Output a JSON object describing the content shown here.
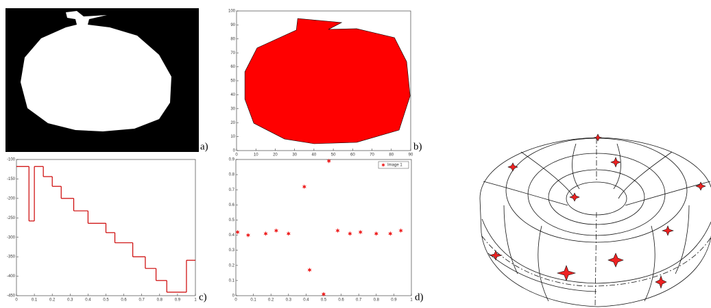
{
  "chart_data": [
    {
      "type": "image",
      "panel_label": "a)"
    },
    {
      "type": "polygon",
      "panel_label": "b)",
      "color": "#ff0000",
      "x": [
        4.3,
        10.6,
        30.9,
        31.6,
        54.3,
        47.5,
        62.1,
        81.6,
        87.9,
        89.7,
        84.0,
        62.1,
        40.1,
        24.8,
        8.9,
        4.3
      ],
      "values": [
        56.4,
        73.5,
        86.3,
        94.6,
        91.7,
        86.8,
        87.3,
        80.9,
        63.7,
        39.2,
        14.7,
        5.9,
        4.9,
        8.3,
        19.6,
        36.8
      ],
      "xlim": [
        0,
        90
      ],
      "xticks": [
        0,
        10,
        20,
        30,
        40,
        50,
        60,
        70,
        80,
        90
      ],
      "ylim": [
        0,
        100
      ],
      "yticks": [
        0,
        10,
        20,
        30,
        40,
        50,
        60,
        70,
        80,
        90,
        100
      ]
    },
    {
      "type": "step",
      "panel_label": "c)",
      "color": "#cc0000",
      "x": [
        0,
        0.07,
        0.1,
        0.15,
        0.2,
        0.25,
        0.32,
        0.4,
        0.5,
        0.55,
        0.65,
        0.72,
        0.78,
        0.84,
        0.95
      ],
      "values": [
        -118,
        -258,
        -118,
        -144,
        -169,
        -200,
        -232,
        -264,
        -288,
        -314,
        -350,
        -380,
        -411,
        -441,
        -359
      ],
      "xlim": [
        0,
        1
      ],
      "xticks": [
        0,
        0.1,
        0.2,
        0.3,
        0.4,
        0.5,
        0.6,
        0.7,
        0.8,
        0.9,
        1
      ],
      "ylim": [
        -450,
        -100
      ],
      "yticks": [
        -450,
        -400,
        -350,
        -300,
        -250,
        -200,
        -150,
        -100
      ]
    },
    {
      "type": "scatter",
      "panel_label": "d)",
      "series": [
        {
          "name": "Image 1",
          "color": "#ee2222",
          "x": [
            0.01,
            0.07,
            0.17,
            0.23,
            0.3,
            0.39,
            0.42,
            0.53,
            0.5,
            0.58,
            0.65,
            0.71,
            0.8,
            0.88,
            0.94
          ],
          "values": [
            0.42,
            0.4,
            0.41,
            0.43,
            0.41,
            0.72,
            0.17,
            0.89,
            0.01,
            0.43,
            0.41,
            0.42,
            0.41,
            0.41,
            0.43
          ]
        }
      ],
      "legend": "upper right",
      "xlim": [
        0,
        1
      ],
      "xticks": [
        0,
        0.1,
        0.2,
        0.3,
        0.4,
        0.5,
        0.6,
        0.7,
        0.8,
        0.9,
        1
      ],
      "ylim": [
        0,
        0.9
      ],
      "yticks": [
        0,
        0.1,
        0.2,
        0.3,
        0.4,
        0.5,
        0.6,
        0.7,
        0.8,
        0.9
      ]
    }
  ]
}
